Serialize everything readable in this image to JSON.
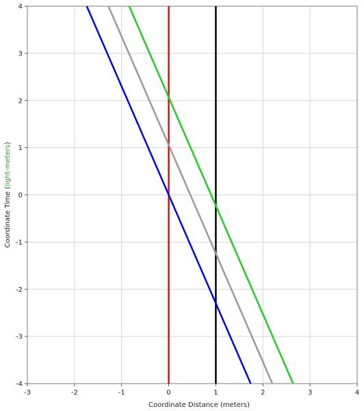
{
  "chart_data": {
    "type": "line",
    "xlabel": "Coordinate Distance (meters)",
    "ylabel": {
      "prefix": "Coordinate Time (",
      "accent": "light-meters",
      "suffix": ")",
      "accent_color": "#2e9e2e"
    },
    "xlim": [
      -3,
      4
    ],
    "ylim": [
      -4,
      4
    ],
    "x_ticks": [
      -3,
      -2,
      -1,
      0,
      1,
      2,
      3,
      4
    ],
    "y_ticks": [
      -4,
      -3,
      -2,
      -1,
      0,
      1,
      2,
      3,
      4
    ],
    "grid": true,
    "legend": "none",
    "series": [
      {
        "color": "#ff0000",
        "points": [
          [
            0,
            -4
          ],
          [
            0,
            4
          ]
        ]
      },
      {
        "color": "#000000",
        "points": [
          [
            1,
            -4
          ],
          [
            1,
            4
          ]
        ]
      },
      {
        "color": "#0000ff",
        "points": [
          [
            -1.74,
            4
          ],
          [
            1.74,
            -4
          ]
        ]
      },
      {
        "color": "#999999",
        "points": [
          [
            -1.28,
            4
          ],
          [
            2.2,
            -4
          ]
        ]
      },
      {
        "color": "#22cc22",
        "points": [
          [
            -0.84,
            4
          ],
          [
            2.64,
            -4
          ]
        ]
      }
    ]
  }
}
